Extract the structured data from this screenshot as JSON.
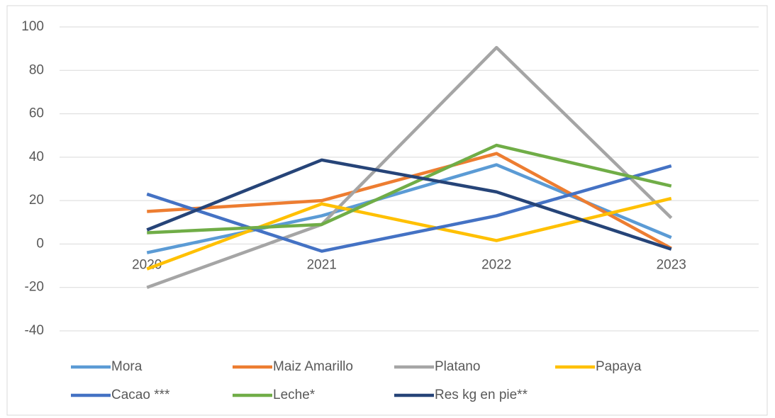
{
  "chart_data": {
    "type": "line",
    "categories": [
      "2020",
      "2021",
      "2022",
      "2023"
    ],
    "series": [
      {
        "name": "Mora",
        "color": "#5b9bd5",
        "values": [
          -4,
          13,
          36.5,
          3
        ]
      },
      {
        "name": "Maiz Amarillo",
        "color": "#ed7d31",
        "values": [
          15,
          20,
          41.7,
          -2
        ]
      },
      {
        "name": "Platano",
        "color": "#a5a5a5",
        "values": [
          -20,
          9,
          90.5,
          12
        ]
      },
      {
        "name": "Papaya",
        "color": "#ffc000",
        "values": [
          -11.5,
          18.5,
          1.6,
          21
        ]
      },
      {
        "name": "Cacao ***",
        "color": "#4472c4",
        "values": [
          23,
          -3.3,
          13,
          36
        ]
      },
      {
        "name": "Leche*",
        "color": "#70ad47",
        "values": [
          5.2,
          9,
          45.5,
          26.7
        ]
      },
      {
        "name": "Res kg en pie**",
        "color": "#264478",
        "values": [
          6.5,
          38.7,
          24,
          -2.4
        ]
      }
    ],
    "ylim": [
      -40,
      100
    ],
    "yticks": [
      -40,
      -20,
      0,
      20,
      40,
      60,
      80,
      100
    ],
    "grid": true,
    "legend": "bottom"
  }
}
